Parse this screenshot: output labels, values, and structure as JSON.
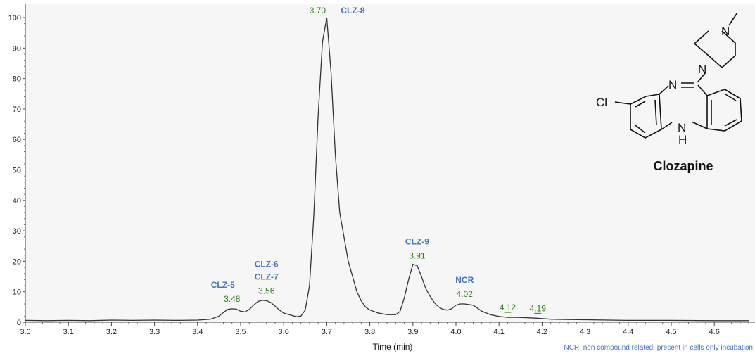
{
  "chart_data": {
    "type": "line",
    "xlabel": "Time (min)",
    "ylabel": "",
    "xlim": [
      3.0,
      4.68
    ],
    "ylim": [
      0,
      100
    ],
    "x_ticks": [
      "3.0",
      "3.1",
      "3.2",
      "3.3",
      "3.4",
      "3.5",
      "3.6",
      "3.7",
      "3.8",
      "3.9",
      "4.0",
      "4.1",
      "4.2",
      "4.3",
      "4.4",
      "4.5",
      "4.6"
    ],
    "y_ticks": [
      "0",
      "10",
      "20",
      "30",
      "40",
      "50",
      "60",
      "70",
      "80",
      "90",
      "100"
    ],
    "grid": false,
    "series": [
      {
        "color": "#333333",
        "x": [
          3.0,
          3.05,
          3.1,
          3.15,
          3.2,
          3.25,
          3.3,
          3.35,
          3.4,
          3.43,
          3.45,
          3.46,
          3.47,
          3.48,
          3.49,
          3.5,
          3.51,
          3.52,
          3.53,
          3.54,
          3.55,
          3.56,
          3.57,
          3.58,
          3.59,
          3.6,
          3.62,
          3.63,
          3.64,
          3.65,
          3.66,
          3.67,
          3.68,
          3.69,
          3.7,
          3.71,
          3.72,
          3.73,
          3.74,
          3.75,
          3.76,
          3.77,
          3.78,
          3.79,
          3.8,
          3.82,
          3.84,
          3.86,
          3.87,
          3.88,
          3.89,
          3.9,
          3.91,
          3.92,
          3.93,
          3.94,
          3.95,
          3.96,
          3.97,
          3.98,
          3.99,
          4.0,
          4.01,
          4.02,
          4.03,
          4.04,
          4.05,
          4.06,
          4.08,
          4.1,
          4.12,
          4.14,
          4.16,
          4.19,
          4.22,
          4.25,
          4.3,
          4.4,
          4.5,
          4.6,
          4.68
        ],
        "y": [
          0.6,
          0.5,
          0.6,
          0.5,
          0.7,
          0.6,
          0.7,
          0.6,
          0.7,
          1.0,
          2.0,
          3.2,
          4.2,
          4.4,
          4.3,
          3.6,
          3.4,
          4.2,
          5.6,
          6.8,
          7.2,
          7.1,
          6.5,
          5.3,
          4.0,
          3.0,
          2.2,
          1.8,
          2.0,
          4.0,
          12,
          35,
          68,
          92,
          100,
          82,
          55,
          36,
          28,
          20,
          15,
          10,
          7,
          5,
          4,
          3,
          2.5,
          2.5,
          3.5,
          8,
          14,
          19,
          18.6,
          15,
          11,
          8.5,
          6.4,
          5,
          4.2,
          4.0,
          4.4,
          5.6,
          6.0,
          6.0,
          5.8,
          5.6,
          4.6,
          3.6,
          2.5,
          1.9,
          1.6,
          1.6,
          1.5,
          1.3,
          1.0,
          0.9,
          0.8,
          0.6,
          0.6,
          0.5,
          0.5
        ]
      }
    ],
    "annotations": [
      {
        "rt": "3.48",
        "name": "CLZ-5",
        "name2": ""
      },
      {
        "rt": "3.56",
        "name": "CLZ-6",
        "name2": "CLZ-7"
      },
      {
        "rt": "3.70",
        "name": "CLZ-8",
        "name2": ""
      },
      {
        "rt": "3.91",
        "name": "CLZ-9",
        "name2": ""
      },
      {
        "rt": "4.02",
        "name": "NCR",
        "name2": ""
      },
      {
        "rt": "4.12",
        "name": "",
        "name2": ""
      },
      {
        "rt": "4.19",
        "name": "",
        "name2": ""
      }
    ],
    "footnote": "NCR: non compound related, present in cells only incubation"
  },
  "structure": {
    "title": "Clozapine",
    "atoms": {
      "cl": "Cl",
      "n_imine": "N",
      "n_pip_bottom": "N",
      "n_pip_top": "N",
      "nh_n": "N",
      "nh_h": "H"
    }
  }
}
